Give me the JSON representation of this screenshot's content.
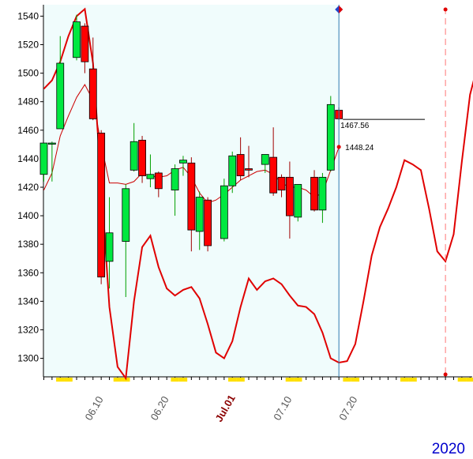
{
  "chart_data": {
    "type": "candlestick",
    "year": "2020",
    "ylim": [
      1287,
      1548
    ],
    "y_ticks": [
      1300,
      1320,
      1340,
      1360,
      1380,
      1400,
      1420,
      1440,
      1460,
      1480,
      1500,
      1520,
      1540
    ],
    "x_ticks": [
      {
        "label": "06.10",
        "x": 6.5
      },
      {
        "label": "06.20",
        "x": 14.5
      },
      {
        "label": "Jul.01",
        "x": 22.5,
        "month": true
      },
      {
        "label": "07.10",
        "x": 29.5
      },
      {
        "label": "07.20",
        "x": 37.5
      }
    ],
    "candles": [
      {
        "x": 0,
        "open": 1429,
        "high": 1451,
        "low": 1424,
        "close": 1451
      },
      {
        "x": 1,
        "open": 1451,
        "high": 1452,
        "low": 1424,
        "close": 1451
      },
      {
        "x": 2,
        "open": 1461,
        "high": 1526,
        "low": 1461,
        "close": 1507
      },
      {
        "x": 4,
        "open": 1511,
        "high": 1541,
        "low": 1509,
        "close": 1536
      },
      {
        "x": 5,
        "open": 1533,
        "high": 1535,
        "low": 1500,
        "close": 1508
      },
      {
        "x": 6,
        "open": 1503,
        "high": 1525,
        "low": 1467,
        "close": 1468
      },
      {
        "x": 7,
        "open": 1458,
        "high": 1460,
        "low": 1352,
        "close": 1357
      },
      {
        "x": 8,
        "open": 1368,
        "high": 1413,
        "low": 1349,
        "close": 1388
      },
      {
        "x": 10,
        "open": 1382,
        "high": 1422,
        "low": 1343,
        "close": 1419
      },
      {
        "x": 11,
        "open": 1432,
        "high": 1465,
        "low": 1431,
        "close": 1452
      },
      {
        "x": 12,
        "open": 1453,
        "high": 1456,
        "low": 1423,
        "close": 1428
      },
      {
        "x": 13,
        "open": 1426,
        "high": 1443,
        "low": 1420,
        "close": 1429
      },
      {
        "x": 14,
        "open": 1430,
        "high": 1431,
        "low": 1413,
        "close": 1419
      },
      {
        "x": 16,
        "open": 1418,
        "high": 1436,
        "low": 1400,
        "close": 1433
      },
      {
        "x": 17,
        "open": 1437,
        "high": 1442,
        "low": 1428,
        "close": 1439
      },
      {
        "x": 18,
        "open": 1437,
        "high": 1441,
        "low": 1375,
        "close": 1390
      },
      {
        "x": 19,
        "open": 1389,
        "high": 1417,
        "low": 1376,
        "close": 1413
      },
      {
        "x": 20,
        "open": 1411,
        "high": 1413,
        "low": 1375,
        "close": 1379
      },
      {
        "x": 22,
        "open": 1384,
        "high": 1426,
        "low": 1382,
        "close": 1421
      },
      {
        "x": 23,
        "open": 1421,
        "high": 1445,
        "low": 1416,
        "close": 1442
      },
      {
        "x": 24,
        "open": 1443,
        "high": 1455,
        "low": 1425,
        "close": 1428
      },
      {
        "x": 25,
        "open": 1433,
        "high": 1449,
        "low": 1427,
        "close": 1432
      },
      {
        "x": 27,
        "open": 1436,
        "high": 1443,
        "low": 1430,
        "close": 1443
      },
      {
        "x": 28,
        "open": 1441,
        "high": 1462,
        "low": 1414,
        "close": 1416
      },
      {
        "x": 29,
        "open": 1427,
        "high": 1429,
        "low": 1413,
        "close": 1418
      },
      {
        "x": 30,
        "open": 1427,
        "high": 1438,
        "low": 1384,
        "close": 1400
      },
      {
        "x": 31,
        "open": 1399,
        "high": 1421,
        "low": 1396,
        "close": 1422
      },
      {
        "x": 33,
        "open": 1427,
        "high": 1432,
        "low": 1403,
        "close": 1404
      },
      {
        "x": 34,
        "open": 1404,
        "high": 1430,
        "low": 1395,
        "close": 1427
      },
      {
        "x": 35,
        "open": 1432,
        "high": 1484,
        "low": 1431,
        "close": 1478
      },
      {
        "x": 36,
        "open": 1474,
        "high": 1476,
        "low": 1467,
        "close": 1468
      }
    ],
    "moving_average": [
      [
        0,
        1418
      ],
      [
        1,
        1430
      ],
      [
        2,
        1456
      ],
      [
        3,
        1470
      ],
      [
        4,
        1483
      ],
      [
        5,
        1492
      ],
      [
        6,
        1481
      ],
      [
        7,
        1450
      ],
      [
        8,
        1423
      ],
      [
        9,
        1423
      ],
      [
        10,
        1422
      ],
      [
        11,
        1424
      ],
      [
        12,
        1430
      ],
      [
        13,
        1428
      ],
      [
        14,
        1427
      ],
      [
        15,
        1428
      ],
      [
        16,
        1432
      ],
      [
        17,
        1434
      ],
      [
        18,
        1427
      ],
      [
        19,
        1416
      ],
      [
        20,
        1409
      ],
      [
        21,
        1411
      ],
      [
        22,
        1415
      ],
      [
        23,
        1420
      ],
      [
        24,
        1425
      ],
      [
        25,
        1428
      ],
      [
        26,
        1431
      ],
      [
        27,
        1432
      ],
      [
        28,
        1429
      ],
      [
        29,
        1423
      ],
      [
        30,
        1420
      ],
      [
        31,
        1420
      ],
      [
        32,
        1418
      ],
      [
        33,
        1413
      ],
      [
        34,
        1416
      ],
      [
        35,
        1432
      ],
      [
        36,
        1448
      ]
    ],
    "oscillator": [
      [
        0,
        1489
      ],
      [
        1,
        1495
      ],
      [
        2,
        1508
      ],
      [
        3,
        1526
      ],
      [
        4,
        1540
      ],
      [
        5,
        1545
      ],
      [
        6,
        1507
      ],
      [
        7,
        1423
      ],
      [
        8,
        1336
      ],
      [
        9,
        1294
      ],
      [
        10,
        1286
      ],
      [
        11,
        1340
      ],
      [
        12,
        1378
      ],
      [
        13,
        1386
      ],
      [
        14,
        1364
      ],
      [
        15,
        1349
      ],
      [
        16,
        1344
      ],
      [
        17,
        1348
      ],
      [
        18,
        1350
      ],
      [
        19,
        1342
      ],
      [
        20,
        1324
      ],
      [
        21,
        1304
      ],
      [
        22,
        1300
      ],
      [
        23,
        1312
      ],
      [
        24,
        1336
      ],
      [
        25,
        1356
      ],
      [
        26,
        1348
      ],
      [
        27,
        1354
      ],
      [
        28,
        1356
      ],
      [
        29,
        1352
      ],
      [
        30,
        1344
      ],
      [
        31,
        1337
      ],
      [
        32,
        1336
      ],
      [
        33,
        1331
      ],
      [
        34,
        1318
      ],
      [
        35,
        1300
      ],
      [
        36,
        1297
      ],
      [
        37,
        1298
      ],
      [
        38,
        1310
      ],
      [
        39,
        1340
      ],
      [
        40,
        1372
      ],
      [
        41,
        1392
      ],
      [
        42,
        1405
      ],
      [
        43,
        1420
      ],
      [
        44,
        1439
      ],
      [
        45,
        1436
      ],
      [
        46,
        1432
      ],
      [
        47,
        1405
      ],
      [
        48,
        1375
      ],
      [
        49,
        1368
      ],
      [
        50,
        1387
      ],
      [
        51,
        1438
      ],
      [
        52,
        1485
      ],
      [
        53,
        1507
      ]
    ],
    "last_close": {
      "x": 36,
      "value": 1467.56,
      "label": "1467.56"
    },
    "ma_value": {
      "x": 36,
      "value": 1448.24,
      "label": "1448.24"
    },
    "current_marker_x": 36,
    "forecast_marker_x": 49
  }
}
